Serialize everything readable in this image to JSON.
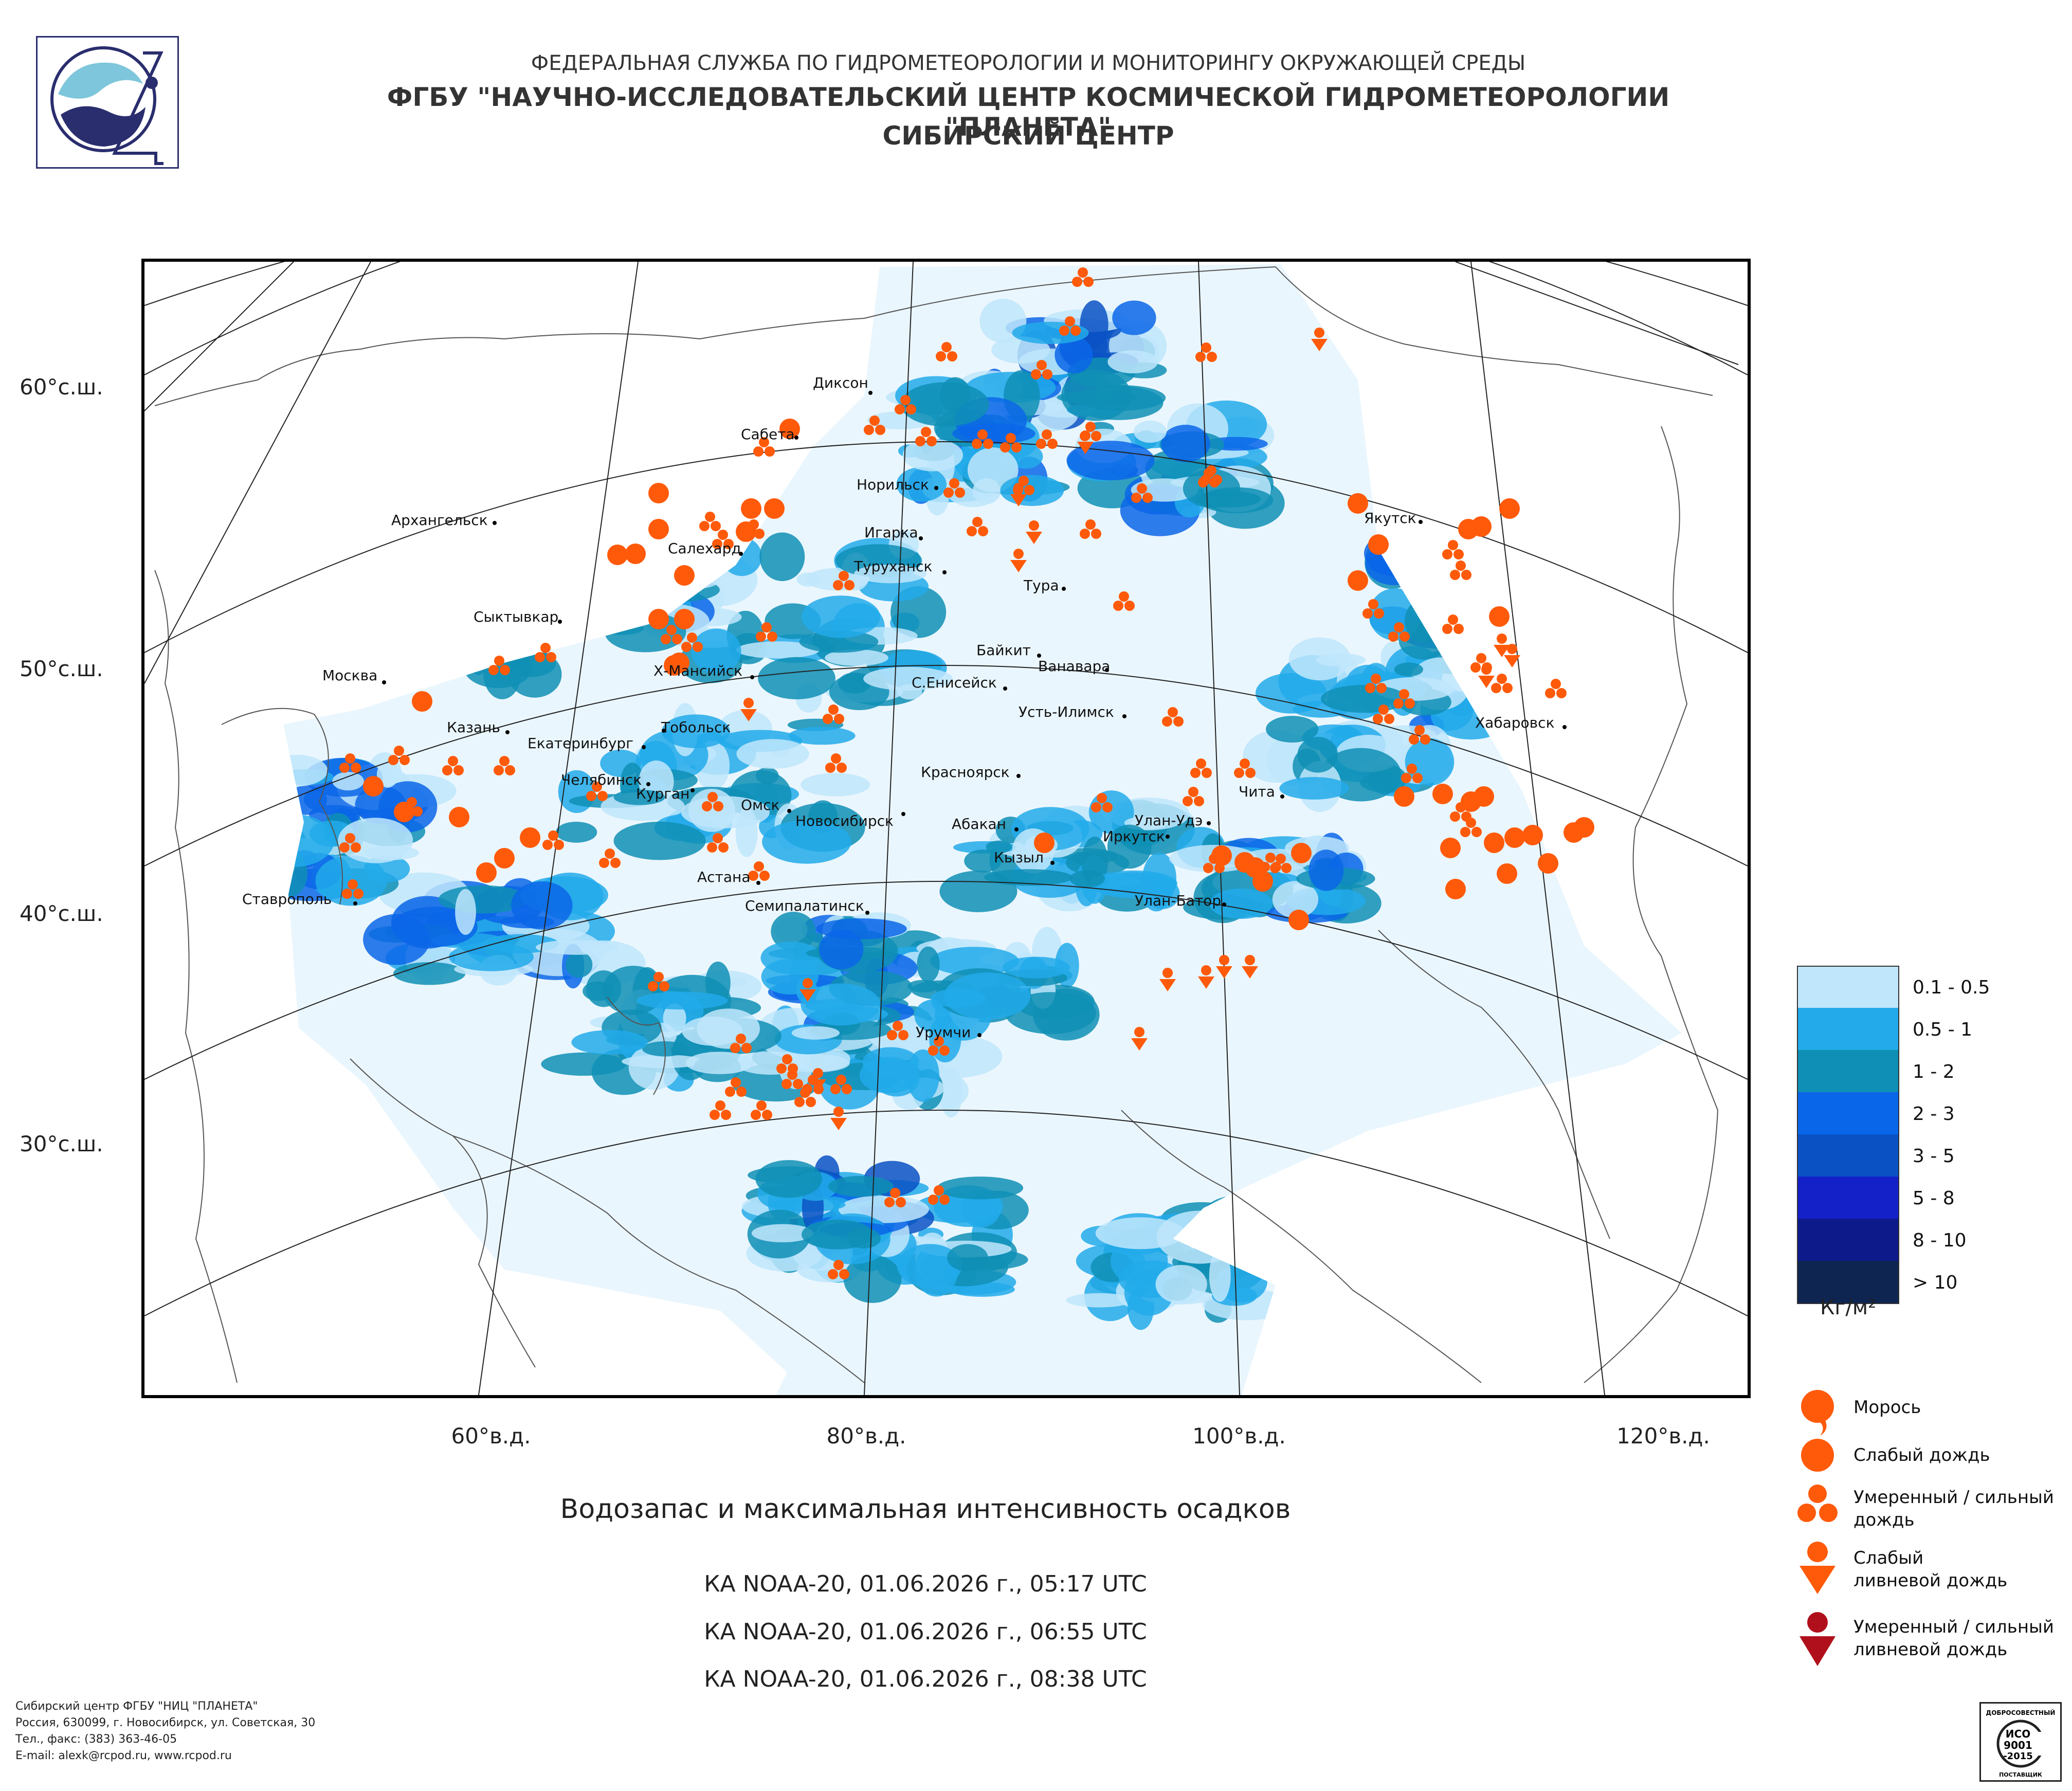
{
  "header": {
    "line1": "ФЕДЕРАЛЬНАЯ СЛУЖБА ПО ГИДРОМЕТЕОРОЛОГИИ И МОНИТОРИНГУ ОКРУЖАЮЩЕЙ СРЕДЫ",
    "line2": "ФГБУ \"НАУЧНО-ИССЛЕДОВАТЕЛЬСКИЙ ЦЕНТР КОСМИЧЕСКОЙ ГИДРОМЕТЕОРОЛОГИИ \"ПЛАНЕТА\"",
    "line3": "СИБИРСКИЙ ЦЕНТР"
  },
  "axes": {
    "lat_labels": [
      "60°с.ш.",
      "50°с.ш.",
      "40°с.ш.",
      "30°с.ш."
    ],
    "lon_labels": [
      "60°в.д.",
      "80°в.д.",
      "100°в.д.",
      "120°в.д."
    ]
  },
  "cities": [
    "Диксон",
    "Сабета",
    "Норильск",
    "Игарка",
    "Туруханск",
    "Тура",
    "Архангельск",
    "Салехард",
    "Сыктывкар",
    "Якутск",
    "Байкит",
    "Ванавара",
    "Х-Мансийск",
    "С.Енисейск",
    "Москва",
    "Усть-Илимск",
    "Хабаровск",
    "Казань",
    "Тобольск",
    "Екатеринбург",
    "Красноярск",
    "Челябинск",
    "Курган",
    "Чита",
    "Омск",
    "Новосибирск",
    "Абакан",
    "Улан-Удэ",
    "Иркутск",
    "Кызыл",
    "Астана",
    "Ставрополь",
    "Семипалатинск",
    "Улан-Батор",
    "Урумчи"
  ],
  "legend": {
    "scale": [
      {
        "label": "0.1 - 0.5",
        "color": "#bfe6fb"
      },
      {
        "label": "0.5 - 1",
        "color": "#22aaea"
      },
      {
        "label": "1 - 2",
        "color": "#0f8fb5"
      },
      {
        "label": "2 - 3",
        "color": "#0a66e8"
      },
      {
        "label": "3 - 5",
        "color": "#0a52c4"
      },
      {
        "label": "5 - 8",
        "color": "#1420c8"
      },
      {
        "label": "8 - 10",
        "color": "#0c1a8a"
      },
      {
        "label": "> 10",
        "color": "#0d2550"
      }
    ],
    "unit": "Кг/м²",
    "symbols": [
      {
        "label": "Морось",
        "icon": "drizzle-icon",
        "color": "#ff5a0a"
      },
      {
        "label": "Слабый дождь",
        "icon": "light-rain-icon",
        "color": "#ff5a0a"
      },
      {
        "label": "Умеренный / сильный дождь",
        "icon": "moderate-rain-icon",
        "color": "#ff5a0a"
      },
      {
        "label": "Слабый ливневой дождь",
        "icon": "light-shower-icon",
        "color": "#ff5a0a"
      },
      {
        "label": "Умеренный / сильный ливневой дождь",
        "icon": "heavy-shower-icon",
        "color": "#b0101c"
      }
    ]
  },
  "caption": "Водозапас и максимальная интенсивность осадков",
  "passes": [
    "КА NOAA-20, 01.06.2026 г., 05:17 UTC",
    "КА NOAA-20, 01.06.2026 г., 06:55 UTC",
    "КА NOAA-20, 01.06.2026 г., 08:38 UTC"
  ],
  "footer": {
    "line1": "Сибирский центр ФГБУ \"НИЦ \"ПЛАНЕТА\"",
    "line2": "Россия, 630099, г. Новосибирск, ул. Советская, 30",
    "line3": "Тел., факс: (383) 363-46-05",
    "line4": "E-mail: alexk@rcpod.ru, www.rcpod.ru"
  },
  "cert": {
    "top": "ДОБРОСОВЕСТНЫЙ",
    "iso": "ИСО",
    "num": "9001",
    "year": "-2015",
    "bottom": "ПОСТАВЩИК"
  }
}
